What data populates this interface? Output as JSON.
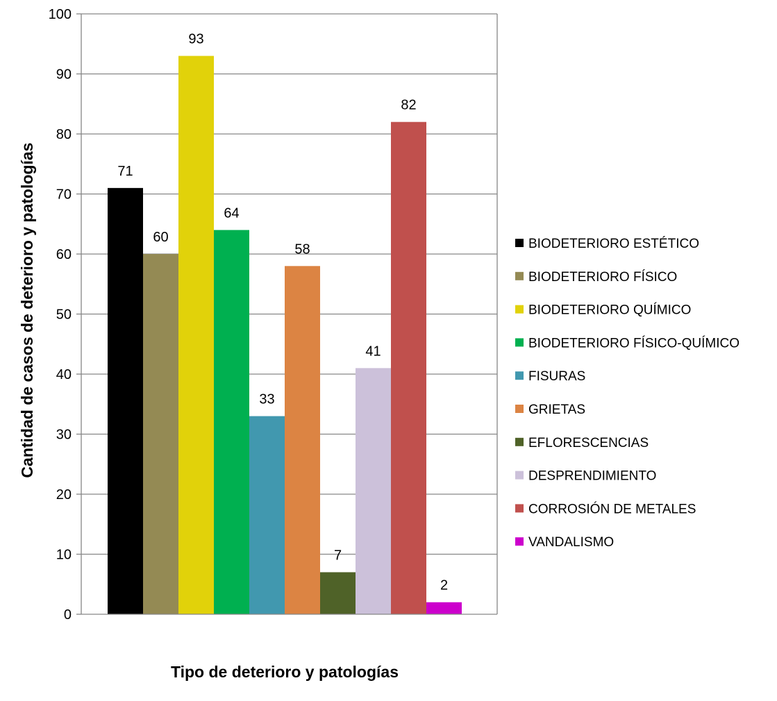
{
  "chart_data": {
    "type": "bar",
    "xlabel": "Tipo de deterioro y patologías",
    "ylabel": "Cantidad de casos de deterioro y patologías",
    "ylim": [
      0,
      100
    ],
    "yticks": [
      0,
      10,
      20,
      30,
      40,
      50,
      60,
      70,
      80,
      90,
      100
    ],
    "grid": true,
    "legend_position": "right",
    "series": [
      {
        "name": "BIODETERIORO ESTÉTICO",
        "value": 71,
        "color": "#000000"
      },
      {
        "name": "BIODETERIORO FÍSICO",
        "value": 60,
        "color": "#948A54"
      },
      {
        "name": "BIODETERIORO QUÍMICO",
        "value": 93,
        "color": "#E1D20A"
      },
      {
        "name": "BIODETERIORO FÍSICO-QUÍMICO",
        "value": 64,
        "color": "#00B050"
      },
      {
        "name": "FISURAS",
        "value": 33,
        "color": "#4198AF"
      },
      {
        "name": "GRIETAS",
        "value": 58,
        "color": "#DC8443"
      },
      {
        "name": "EFLORESCENCIAS",
        "value": 7,
        "color": "#4F6228"
      },
      {
        "name": "DESPRENDIMIENTO",
        "value": 41,
        "color": "#CCC1DA"
      },
      {
        "name": "CORROSIÓN DE METALES",
        "value": 82,
        "color": "#C0504D"
      },
      {
        "name": "VANDALISMO",
        "value": 2,
        "color": "#CC00CC"
      }
    ]
  }
}
